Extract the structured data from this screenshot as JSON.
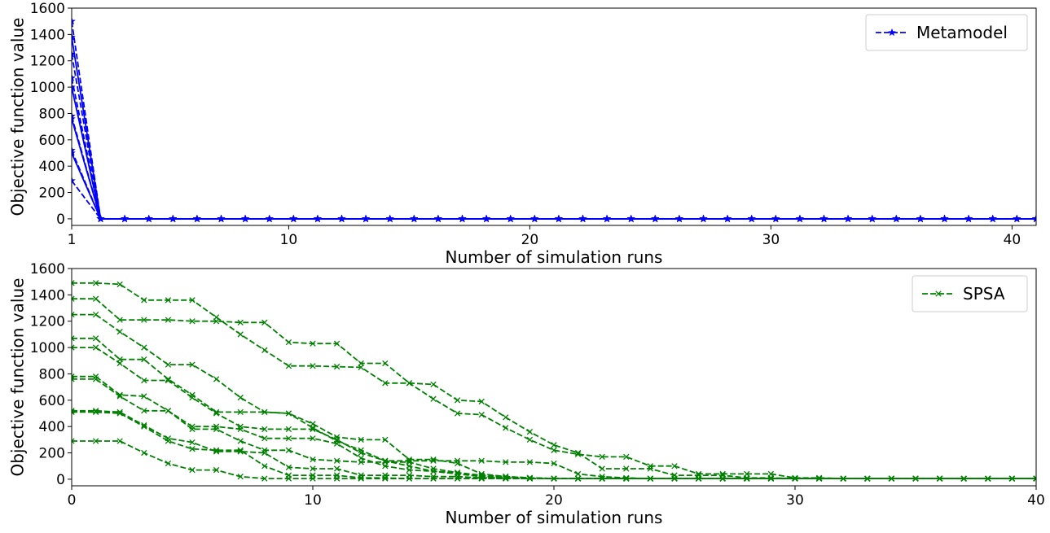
{
  "chart_data": [
    {
      "type": "line",
      "xlabel": "Number of simulation runs",
      "ylabel": "Objective function value",
      "xlim": [
        1,
        41
      ],
      "ylim": [
        -50,
        1600
      ],
      "xticks": [
        1,
        10,
        20,
        30,
        40
      ],
      "yticks": [
        0,
        200,
        400,
        600,
        800,
        1000,
        1200,
        1400,
        1600
      ],
      "grid": false,
      "legend": {
        "position": "top-right",
        "entries": [
          "Metamodel"
        ]
      },
      "color": "#0000ff",
      "marker": "star",
      "x_runs": [
        1,
        2.2,
        3.2,
        4.2,
        5.2,
        6.2,
        7.2,
        8.2,
        9.2,
        10.2,
        11.2,
        12.2,
        13.2,
        14.2,
        15.2,
        16.2,
        17.2,
        18.2,
        19.2,
        20.2,
        21.2,
        22.2,
        23.2,
        24.2,
        25.2,
        26.2,
        27.2,
        28.2,
        29.2,
        30.2,
        31.2,
        32.2,
        33.2,
        34.2,
        35.2,
        36.2,
        37.2,
        38.2,
        39.2,
        40.2,
        41
      ],
      "series": [
        {
          "start": 1500,
          "solid": false
        },
        {
          "start": 1380,
          "solid": true
        },
        {
          "start": 1250,
          "solid": false
        },
        {
          "start": 1070,
          "solid": false
        },
        {
          "start": 1000,
          "solid": true
        },
        {
          "start": 780,
          "solid": false
        },
        {
          "start": 760,
          "solid": true
        },
        {
          "start": 520,
          "solid": false
        },
        {
          "start": 500,
          "solid": true
        },
        {
          "start": 290,
          "solid": false
        }
      ]
    },
    {
      "type": "line",
      "xlabel": "Number of simulation runs",
      "ylabel": "Objective function value",
      "xlim": [
        0,
        40
      ],
      "ylim": [
        -50,
        1600
      ],
      "xticks": [
        0,
        10,
        20,
        30,
        40
      ],
      "yticks": [
        0,
        200,
        400,
        600,
        800,
        1000,
        1200,
        1400,
        1600
      ],
      "grid": false,
      "legend": {
        "position": "top-right",
        "entries": [
          "SPSA"
        ]
      },
      "color": "#008000",
      "marker": "x",
      "x": [
        0,
        1,
        2,
        3,
        4,
        5,
        6,
        7,
        8,
        9,
        10,
        11,
        12,
        13,
        14,
        15,
        16,
        17,
        18,
        19,
        20,
        21,
        22,
        23,
        24,
        25,
        26,
        27,
        28,
        29,
        30,
        31,
        32,
        33,
        34,
        35,
        36,
        37,
        38,
        39,
        40
      ],
      "series": [
        {
          "values": [
            1490,
            1490,
            1480,
            1360,
            1360,
            1360,
            1230,
            1100,
            980,
            860,
            860,
            855,
            850,
            730,
            730,
            610,
            500,
            490,
            390,
            300,
            220,
            190,
            170,
            170,
            100,
            100,
            40,
            40,
            40,
            40,
            10,
            10,
            5,
            5,
            5,
            5,
            5,
            5,
            5,
            5,
            5
          ]
        },
        {
          "values": [
            1370,
            1370,
            1210,
            1210,
            1210,
            1200,
            1200,
            1190,
            1190,
            1040,
            1030,
            1030,
            880,
            880,
            730,
            720,
            600,
            590,
            470,
            360,
            260,
            200,
            80,
            80,
            80,
            30,
            30,
            30,
            10,
            10,
            5,
            5,
            5,
            5,
            5,
            5,
            5,
            5,
            5,
            5,
            5
          ]
        },
        {
          "values": [
            1250,
            1250,
            1120,
            1000,
            870,
            870,
            760,
            620,
            510,
            500,
            390,
            290,
            220,
            140,
            140,
            140,
            140,
            140,
            130,
            130,
            120,
            40,
            20,
            10,
            5,
            5,
            5,
            5,
            5,
            5,
            5,
            5,
            5,
            5,
            5,
            5,
            5,
            5,
            5,
            5,
            5
          ]
        },
        {
          "values": [
            1070,
            1070,
            910,
            910,
            760,
            640,
            510,
            510,
            510,
            500,
            420,
            320,
            300,
            300,
            150,
            150,
            120,
            40,
            20,
            10,
            5,
            5,
            5,
            5,
            5,
            5,
            5,
            5,
            5,
            5,
            5,
            5,
            5,
            5,
            5,
            5,
            5,
            5,
            5,
            5,
            5
          ]
        },
        {
          "values": [
            1000,
            1000,
            880,
            750,
            750,
            620,
            500,
            400,
            380,
            380,
            380,
            300,
            200,
            140,
            100,
            60,
            40,
            20,
            20,
            10,
            5,
            5,
            5,
            5,
            5,
            5,
            5,
            5,
            5,
            5,
            5,
            5,
            5,
            5,
            5,
            5,
            5,
            5,
            5,
            5,
            5
          ]
        },
        {
          "values": [
            780,
            780,
            640,
            630,
            520,
            400,
            400,
            380,
            310,
            310,
            310,
            270,
            160,
            100,
            70,
            60,
            50,
            30,
            20,
            10,
            5,
            5,
            5,
            5,
            5,
            5,
            5,
            5,
            5,
            5,
            5,
            5,
            5,
            5,
            5,
            5,
            5,
            5,
            5,
            5,
            5
          ]
        },
        {
          "values": [
            760,
            760,
            630,
            520,
            520,
            380,
            380,
            290,
            220,
            220,
            150,
            140,
            130,
            130,
            130,
            80,
            50,
            20,
            10,
            10,
            5,
            5,
            5,
            5,
            5,
            5,
            5,
            5,
            5,
            5,
            5,
            5,
            5,
            5,
            5,
            5,
            5,
            5,
            5,
            5,
            5
          ]
        },
        {
          "values": [
            520,
            520,
            510,
            410,
            310,
            280,
            210,
            210,
            200,
            90,
            80,
            80,
            30,
            30,
            30,
            20,
            20,
            10,
            10,
            5,
            5,
            5,
            5,
            5,
            5,
            5,
            5,
            5,
            5,
            5,
            5,
            5,
            5,
            5,
            5,
            5,
            5,
            5,
            5,
            5,
            5
          ]
        },
        {
          "values": [
            510,
            510,
            500,
            400,
            290,
            230,
            220,
            220,
            100,
            30,
            30,
            30,
            10,
            10,
            5,
            5,
            5,
            5,
            5,
            5,
            5,
            5,
            5,
            5,
            5,
            5,
            5,
            5,
            5,
            5,
            5,
            5,
            5,
            5,
            5,
            5,
            5,
            5,
            5,
            5,
            5
          ]
        },
        {
          "values": [
            290,
            290,
            290,
            200,
            120,
            70,
            70,
            20,
            5,
            5,
            5,
            5,
            5,
            5,
            5,
            5,
            5,
            5,
            5,
            5,
            5,
            5,
            5,
            5,
            5,
            5,
            5,
            5,
            5,
            5,
            5,
            5,
            5,
            5,
            5,
            5,
            5,
            5,
            5,
            5,
            5
          ]
        }
      ]
    }
  ]
}
